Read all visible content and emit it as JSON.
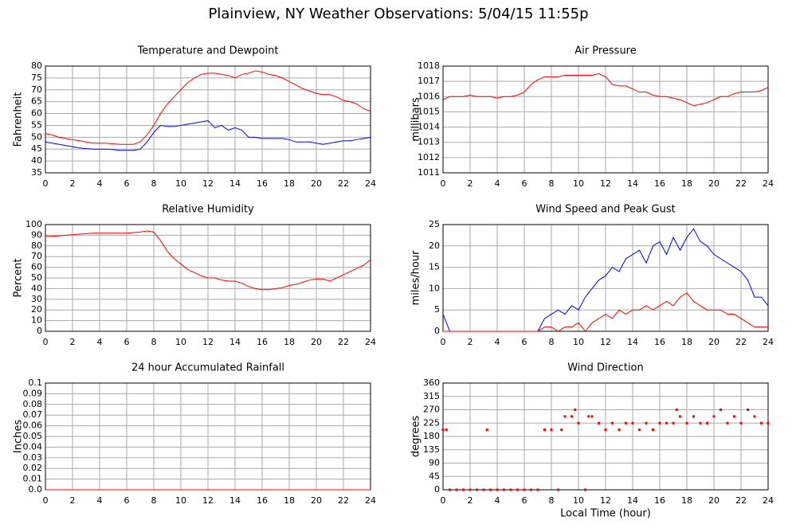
{
  "title": "Plainview, NY Weather Observations: 5/04/15 11:55p",
  "chart_data": [
    {
      "type": "line",
      "title": "Temperature and Dewpoint",
      "y_label": "Fahrenheit",
      "x": [
        0,
        0.5,
        1,
        1.5,
        2,
        2.5,
        3,
        3.5,
        4,
        4.5,
        5,
        5.5,
        6,
        6.5,
        7,
        7.5,
        8,
        8.5,
        9,
        9.5,
        10,
        10.5,
        11,
        11.5,
        12,
        12.5,
        13,
        13.5,
        14,
        14.5,
        15,
        15.5,
        16,
        16.5,
        17,
        17.5,
        18,
        18.5,
        19,
        19.5,
        20,
        20.5,
        21,
        21.5,
        22,
        22.5,
        23,
        23.5,
        24
      ],
      "series": [
        {
          "color": "#ff0000",
          "values": [
            51.5,
            51,
            50,
            49.5,
            49,
            48.5,
            48,
            47.5,
            47.5,
            47.5,
            47.2,
            47,
            47,
            47,
            48,
            51,
            55,
            60,
            64,
            67,
            70,
            73,
            75,
            76.5,
            77,
            77,
            76.5,
            76,
            75,
            76.5,
            77,
            78,
            77.5,
            76.5,
            76,
            75,
            73.5,
            72,
            70.5,
            69.5,
            68.5,
            68,
            68,
            67,
            65.5,
            65,
            64,
            62,
            61
          ]
        },
        {
          "color": "#0000ff",
          "values": [
            48,
            47.5,
            47,
            46.5,
            46,
            45.5,
            45.2,
            45,
            45,
            45,
            44.8,
            44.5,
            44.5,
            44.5,
            45,
            48,
            52,
            55,
            54.5,
            54.5,
            55,
            55.5,
            56,
            56.5,
            57,
            54,
            55,
            53,
            54,
            53,
            50,
            50,
            49.5,
            49.5,
            49.5,
            49.5,
            49,
            48,
            48,
            48,
            47.5,
            47,
            47.5,
            48,
            48.5,
            48.5,
            49,
            49.5,
            50
          ]
        }
      ],
      "xlim": [
        0,
        24
      ],
      "xticks": [
        0,
        2,
        4,
        6,
        8,
        10,
        12,
        14,
        16,
        18,
        20,
        22,
        24
      ],
      "ylim": [
        35,
        80
      ],
      "yticks": [
        35,
        40,
        45,
        50,
        55,
        60,
        65,
        70,
        75,
        80
      ],
      "grid": true
    },
    {
      "type": "line",
      "title": "Air Pressure",
      "y_label": "millibars",
      "x": [
        0,
        0.5,
        1,
        1.5,
        2,
        2.5,
        3,
        3.5,
        4,
        4.5,
        5,
        5.5,
        6,
        6.5,
        7,
        7.5,
        8,
        8.5,
        9,
        9.5,
        10,
        10.5,
        11,
        11.5,
        12,
        12.5,
        13,
        13.5,
        14,
        14.5,
        15,
        15.5,
        16,
        16.5,
        17,
        17.5,
        18,
        18.5,
        19,
        19.5,
        20,
        20.5,
        21,
        21.5,
        22,
        22.5,
        23,
        23.5,
        24
      ],
      "series": [
        {
          "color": "#ff0000",
          "values": [
            1015.8,
            1016,
            1016,
            1016,
            1016.1,
            1016,
            1016,
            1016,
            1015.9,
            1016,
            1016,
            1016.1,
            1016.3,
            1016.8,
            1017.1,
            1017.3,
            1017.3,
            1017.3,
            1017.4,
            1017.4,
            1017.4,
            1017.4,
            1017.4,
            1017.5,
            1017.3,
            1016.8,
            1016.7,
            1016.7,
            1016.5,
            1016.3,
            1016.3,
            1016.1,
            1016,
            1016,
            1015.9,
            1015.8,
            1015.6,
            1015.4,
            1015.5,
            1015.6,
            1015.8,
            1016,
            1016,
            1016.2,
            1016.3,
            1016.3,
            1016.3,
            1016.4,
            1016.6
          ]
        }
      ],
      "xlim": [
        0,
        24
      ],
      "xticks": [
        0,
        2,
        4,
        6,
        8,
        10,
        12,
        14,
        16,
        18,
        20,
        22,
        24
      ],
      "ylim": [
        1011,
        1018
      ],
      "yticks": [
        1011,
        1012,
        1013,
        1014,
        1015,
        1016,
        1017,
        1018
      ],
      "grid": true
    },
    {
      "type": "line",
      "title": "Relative Humidity",
      "y_label": "Percent",
      "x": [
        0,
        0.5,
        1,
        1.5,
        2,
        2.5,
        3,
        3.5,
        4,
        4.5,
        5,
        5.5,
        6,
        6.5,
        7,
        7.5,
        8,
        8.5,
        9,
        9.5,
        10,
        10.5,
        11,
        11.5,
        12,
        12.5,
        13,
        13.5,
        14,
        14.5,
        15,
        15.5,
        16,
        16.5,
        17,
        17.5,
        18,
        18.5,
        19,
        19.5,
        20,
        20.5,
        21,
        21.5,
        22,
        22.5,
        23,
        23.5,
        24
      ],
      "series": [
        {
          "color": "#ff0000",
          "values": [
            89,
            89,
            89.5,
            90,
            90.5,
            91,
            91.5,
            92,
            92,
            92,
            92,
            92,
            92,
            92.5,
            93,
            94,
            93,
            85,
            75,
            68,
            63,
            58,
            55,
            52,
            50,
            50,
            48,
            47,
            47,
            45,
            42,
            40,
            39,
            39,
            40,
            41,
            43,
            44,
            46,
            48,
            49,
            49,
            47,
            50,
            53,
            56,
            59,
            62,
            67
          ]
        }
      ],
      "xlim": [
        0,
        24
      ],
      "xticks": [
        0,
        2,
        4,
        6,
        8,
        10,
        12,
        14,
        16,
        18,
        20,
        22,
        24
      ],
      "ylim": [
        0,
        100
      ],
      "yticks": [
        0,
        10,
        20,
        30,
        40,
        50,
        60,
        70,
        80,
        90,
        100
      ],
      "grid": true
    },
    {
      "type": "line",
      "title": "Wind Speed and Peak Gust",
      "y_label": "miles/hour",
      "x": [
        0,
        0.5,
        1,
        1.5,
        2,
        2.5,
        3,
        3.5,
        4,
        4.5,
        5,
        5.5,
        6,
        6.5,
        7,
        7.5,
        8,
        8.5,
        9,
        9.5,
        10,
        10.5,
        11,
        11.5,
        12,
        12.5,
        13,
        13.5,
        14,
        14.5,
        15,
        15.5,
        16,
        16.5,
        17,
        17.5,
        18,
        18.5,
        19,
        19.5,
        20,
        20.5,
        21,
        21.5,
        22,
        22.5,
        23,
        23.5,
        24
      ],
      "series": [
        {
          "color": "#0000ff",
          "values": [
            4,
            0,
            0,
            0,
            0,
            0,
            0,
            0,
            0,
            0,
            0,
            0,
            0,
            0,
            0,
            3,
            4,
            5,
            4,
            6,
            5,
            8,
            10,
            12,
            13,
            15,
            14,
            17,
            18,
            19,
            16,
            20,
            21,
            18,
            22,
            19,
            22,
            24,
            21,
            20,
            18,
            17,
            16,
            15,
            14,
            12,
            8,
            8,
            6
          ]
        },
        {
          "color": "#ff0000",
          "values": [
            0,
            0,
            0,
            0,
            0,
            0,
            0,
            0,
            0,
            0,
            0,
            0,
            0,
            0,
            0,
            1,
            1,
            0,
            1,
            1,
            2,
            0,
            2,
            3,
            4,
            3,
            5,
            4,
            5,
            5,
            6,
            5,
            6,
            7,
            6,
            8,
            9,
            7,
            6,
            5,
            5,
            5,
            4,
            4,
            3,
            2,
            1,
            1,
            1
          ]
        }
      ],
      "xlim": [
        0,
        24
      ],
      "xticks": [
        0,
        2,
        4,
        6,
        8,
        10,
        12,
        14,
        16,
        18,
        20,
        22,
        24
      ],
      "ylim": [
        0,
        25
      ],
      "yticks": [
        0,
        5,
        10,
        15,
        20,
        25
      ],
      "grid": true
    },
    {
      "type": "line",
      "title": "24 hour Accumulated Rainfall",
      "y_label": "Inches",
      "x": [
        0,
        24
      ],
      "series": [
        {
          "color": "#ff0000",
          "values": [
            0,
            0
          ]
        }
      ],
      "xlim": [
        0,
        24
      ],
      "xticks": [
        0,
        2,
        4,
        6,
        8,
        10,
        12,
        14,
        16,
        18,
        20,
        22,
        24
      ],
      "ylim": [
        0,
        0.1
      ],
      "yticks": [
        {
          "value": 0,
          "label": "0.0"
        },
        0.01,
        0.02,
        0.03,
        0.04,
        0.05,
        0.06,
        0.07,
        0.08,
        0.09,
        0.1
      ],
      "grid": true
    },
    {
      "type": "scatter",
      "title": "Wind Direction",
      "y_label": "degrees",
      "x_label": "Local Time (hour)",
      "x": [
        0,
        0.25,
        0.5,
        1,
        1.5,
        2,
        2.5,
        3,
        3.25,
        3.5,
        4,
        4.5,
        5,
        5.5,
        6,
        6.5,
        7,
        7.5,
        8,
        8.5,
        8.75,
        9,
        9.5,
        9.75,
        10,
        10.5,
        10.75,
        11,
        11.5,
        12,
        12.5,
        13,
        13.5,
        14,
        14.5,
        15,
        15.5,
        16,
        16.5,
        17,
        17.25,
        17.5,
        18,
        18.5,
        19,
        19.5,
        20,
        20.5,
        21,
        21.5,
        22,
        22.5,
        23,
        23.5,
        24
      ],
      "series": [
        {
          "color": "#ff0000",
          "values": [
            202.5,
            202.5,
            0,
            0,
            0,
            0,
            0,
            0,
            202.5,
            0,
            0,
            0,
            0,
            0,
            0,
            0,
            0,
            202.5,
            202.5,
            0,
            202.5,
            247.5,
            247.5,
            270,
            225,
            0,
            247.5,
            247.5,
            225,
            202.5,
            225,
            202.5,
            225,
            225,
            202.5,
            225,
            202.5,
            225,
            225,
            225,
            270,
            247.5,
            225,
            247.5,
            225,
            225,
            247.5,
            270,
            225,
            247.5,
            225,
            270,
            247.5,
            225,
            225
          ]
        }
      ],
      "xlim": [
        0,
        24
      ],
      "xticks": [
        0,
        2,
        4,
        6,
        8,
        10,
        12,
        14,
        16,
        18,
        20,
        22,
        24
      ],
      "ylim": [
        0,
        360
      ],
      "yticks": [
        0,
        45,
        90,
        135,
        180,
        225,
        270,
        315,
        360
      ],
      "grid": true
    }
  ]
}
